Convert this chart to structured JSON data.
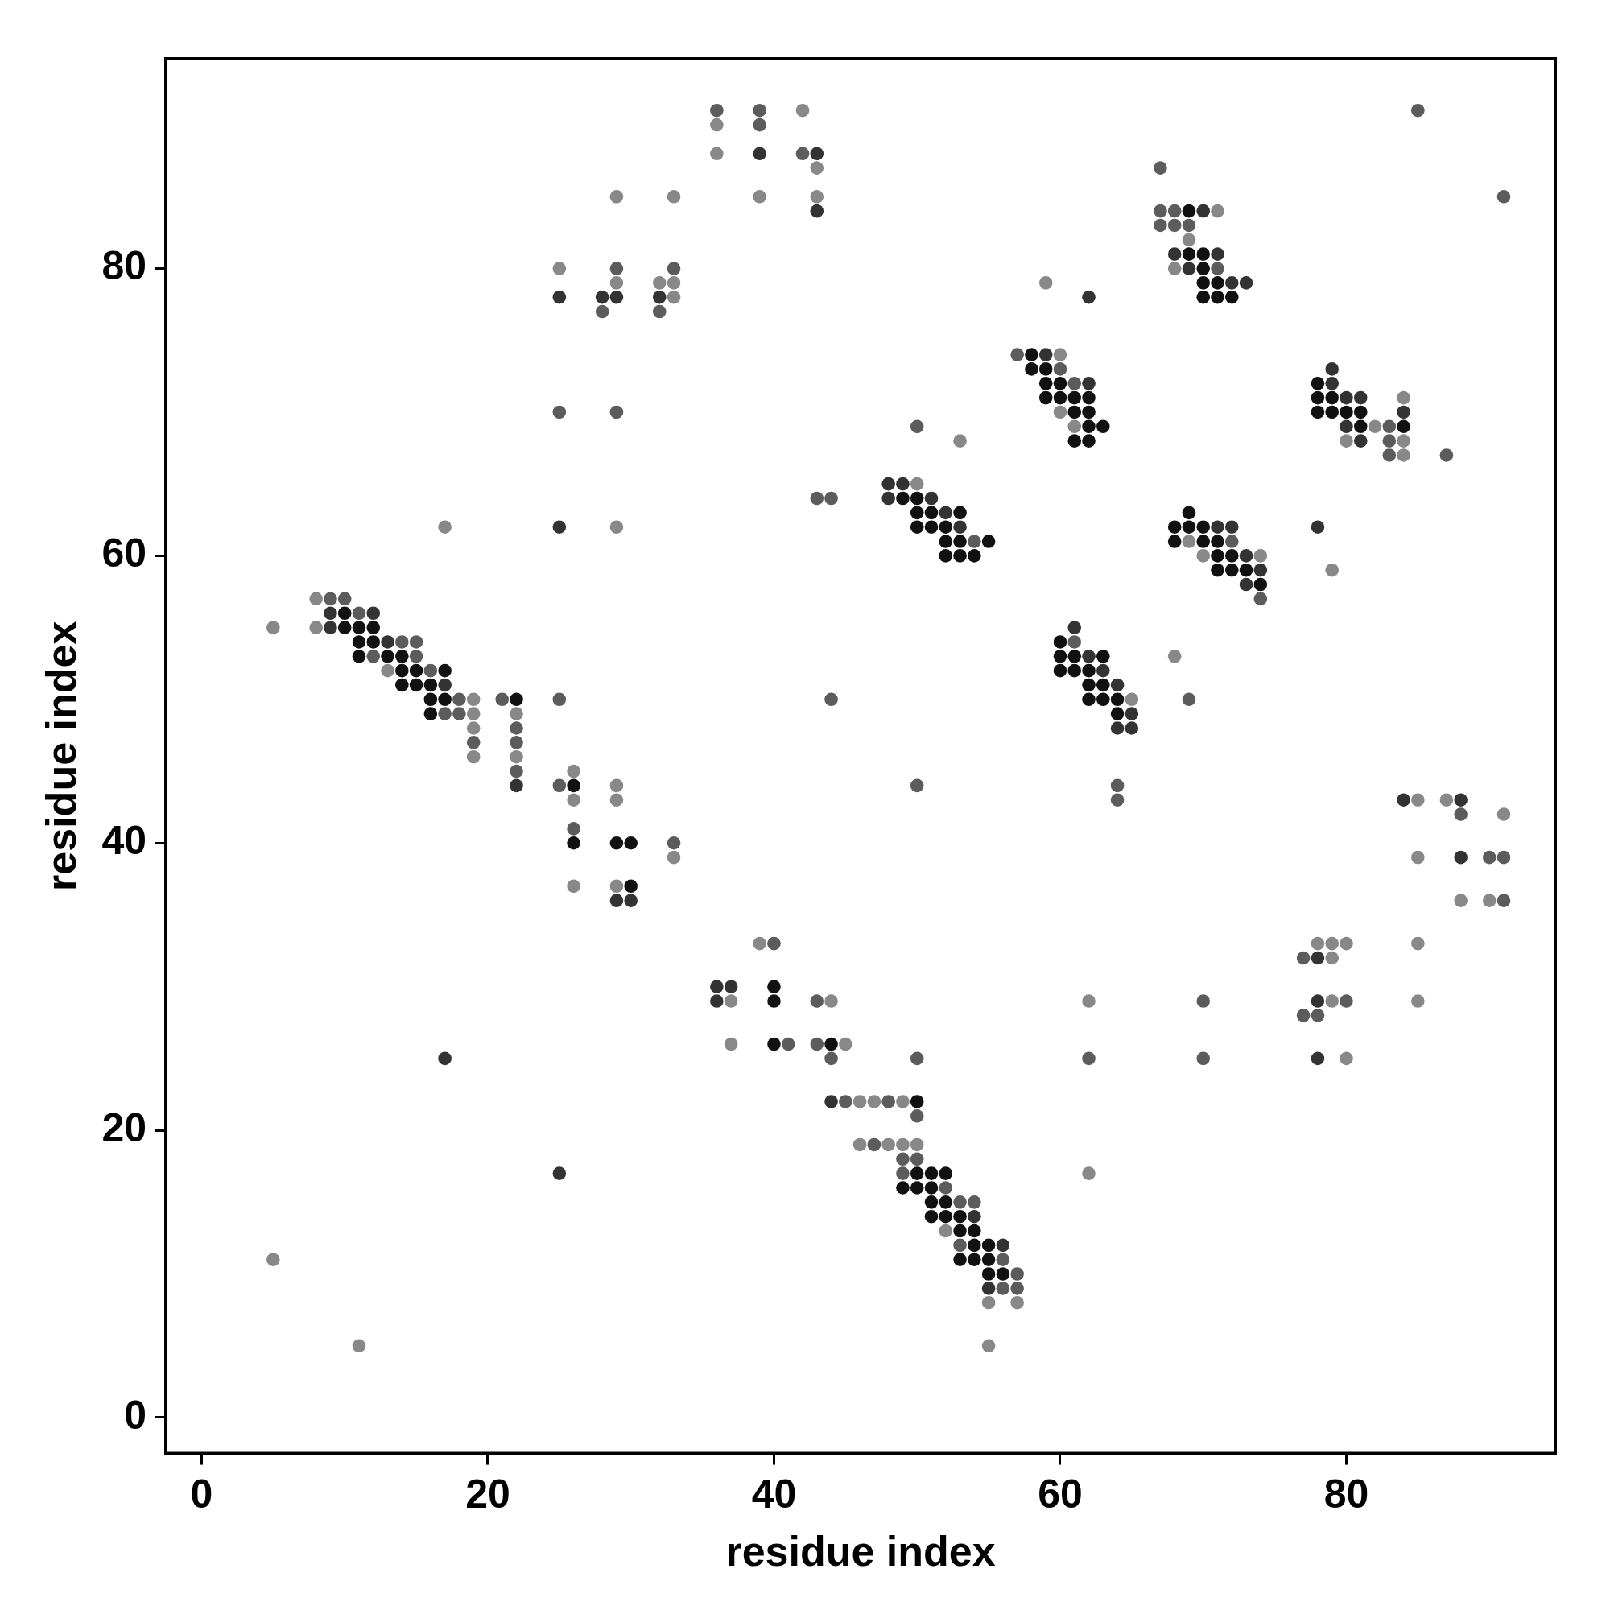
{
  "chart_data": {
    "type": "scatter",
    "xlabel": "residue index",
    "ylabel": "residue index",
    "xlim": [
      -2.5,
      94.6
    ],
    "ylim": [
      -2.5,
      94.6
    ],
    "xticks": [
      0,
      20,
      40,
      60,
      80
    ],
    "yticks": [
      0,
      20,
      40,
      60,
      80
    ],
    "grid": false,
    "legend": false,
    "marker": "circle",
    "series": [
      {
        "color": "#888888",
        "x": [
          36,
          36,
          39,
          42,
          43,
          43,
          29,
          33,
          25,
          29,
          32,
          33,
          33,
          17,
          29,
          71,
          69,
          68,
          59,
          60,
          61,
          53,
          50,
          82,
          80,
          84,
          84,
          84,
          79,
          69,
          70,
          74,
          68,
          65,
          5,
          8,
          8,
          13,
          19,
          19,
          19,
          22,
          19,
          22,
          26,
          29,
          26,
          29,
          26,
          29,
          33,
          5,
          11,
          39,
          37,
          44,
          62,
          37,
          45,
          46,
          47,
          49,
          46,
          48,
          49,
          50,
          62,
          52,
          55,
          57,
          55,
          85,
          87,
          91,
          85,
          88,
          90,
          78,
          79,
          80,
          85,
          79,
          79,
          85,
          80,
          60
        ],
        "values": [
          90,
          88,
          85,
          91,
          87,
          85,
          85,
          85,
          80,
          79,
          79,
          79,
          78,
          62,
          62,
          84,
          82,
          80,
          79,
          70,
          69,
          68,
          65,
          69,
          68,
          71,
          68,
          67,
          59,
          61,
          60,
          60,
          53,
          50,
          55,
          57,
          55,
          52,
          50,
          49,
          48,
          49,
          46,
          46,
          45,
          44,
          43,
          43,
          37,
          37,
          39,
          11,
          5,
          33,
          29,
          29,
          29,
          26,
          26,
          22,
          22,
          22,
          19,
          19,
          19,
          19,
          17,
          13,
          8,
          8,
          5,
          43,
          43,
          42,
          39,
          36,
          36,
          33,
          33,
          33,
          33,
          32,
          29,
          29,
          25,
          74
        ]
      },
      {
        "color": "#5c5c5c",
        "x": [
          36,
          39,
          39,
          42,
          29,
          28,
          32,
          33,
          25,
          29,
          85,
          91,
          67,
          67,
          68,
          67,
          68,
          69,
          71,
          57,
          60,
          61,
          50,
          43,
          44,
          54,
          83,
          83,
          83,
          87,
          72,
          74,
          61,
          69,
          44,
          10,
          9,
          11,
          14,
          15,
          12,
          15,
          16,
          18,
          21,
          25,
          17,
          18,
          22,
          19,
          22,
          22,
          25,
          26,
          33,
          50,
          40,
          43,
          41,
          43,
          44,
          50,
          62,
          45,
          48,
          50,
          47,
          49,
          50,
          49,
          52,
          53,
          54,
          53,
          56,
          57,
          56,
          57,
          64,
          64,
          88,
          90,
          91,
          91,
          77,
          70,
          80,
          77,
          78,
          70
        ],
        "values": [
          91,
          91,
          90,
          88,
          80,
          77,
          77,
          80,
          70,
          70,
          91,
          85,
          87,
          84,
          84,
          83,
          83,
          83,
          80,
          74,
          73,
          72,
          69,
          64,
          64,
          61,
          69,
          68,
          67,
          67,
          61,
          57,
          54,
          50,
          50,
          57,
          57,
          56,
          54,
          54,
          53,
          53,
          52,
          50,
          50,
          50,
          49,
          49,
          47,
          47,
          48,
          45,
          44,
          41,
          40,
          44,
          33,
          29,
          26,
          26,
          25,
          25,
          25,
          22,
          22,
          21,
          19,
          18,
          18,
          17,
          16,
          15,
          15,
          12,
          11,
          10,
          9,
          9,
          44,
          43,
          42,
          39,
          39,
          36,
          32,
          29,
          29,
          28,
          28,
          25
        ]
      },
      {
        "color": "#333333",
        "x": [
          39,
          43,
          43,
          25,
          28,
          29,
          32,
          25,
          62,
          70,
          68,
          71,
          69,
          72,
          73,
          59,
          62,
          48,
          49,
          48,
          51,
          52,
          53,
          79,
          79,
          80,
          81,
          81,
          84,
          80,
          78,
          71,
          72,
          73,
          74,
          73,
          61,
          62,
          63,
          64,
          65,
          64,
          65,
          9,
          12,
          9,
          13,
          17,
          22,
          29,
          30,
          17,
          25,
          36,
          37,
          36,
          44,
          54,
          56,
          55,
          84,
          88,
          88,
          78,
          78,
          78
        ],
        "values": [
          88,
          88,
          84,
          78,
          78,
          78,
          78,
          62,
          78,
          84,
          81,
          81,
          80,
          79,
          79,
          74,
          72,
          65,
          65,
          64,
          64,
          63,
          62,
          73,
          72,
          71,
          71,
          68,
          70,
          69,
          62,
          62,
          62,
          60,
          59,
          58,
          55,
          53,
          52,
          51,
          49,
          48,
          48,
          56,
          56,
          55,
          54,
          51,
          44,
          36,
          36,
          25,
          17,
          30,
          30,
          29,
          22,
          14,
          12,
          9,
          43,
          43,
          39,
          32,
          29,
          25
        ]
      },
      {
        "color": "#111111",
        "x": [
          69,
          69,
          70,
          70,
          70,
          71,
          70,
          71,
          72,
          58,
          58,
          59,
          59,
          60,
          59,
          60,
          61,
          62,
          61,
          62,
          62,
          63,
          61,
          62,
          49,
          50,
          50,
          51,
          53,
          50,
          51,
          52,
          52,
          53,
          55,
          52,
          53,
          54,
          78,
          78,
          79,
          78,
          79,
          80,
          81,
          81,
          84,
          68,
          68,
          69,
          69,
          70,
          70,
          71,
          71,
          71,
          72,
          72,
          73,
          74,
          60,
          60,
          61,
          63,
          60,
          61,
          62,
          62,
          63,
          62,
          63,
          64,
          64,
          10,
          10,
          11,
          12,
          11,
          12,
          11,
          13,
          14,
          14,
          15,
          17,
          14,
          15,
          16,
          16,
          17,
          22,
          16,
          26,
          26,
          29,
          30,
          30,
          40,
          40,
          40,
          44,
          50,
          50,
          51,
          52,
          49,
          50,
          51,
          51,
          52,
          51,
          52,
          53,
          53,
          54,
          54,
          55,
          53,
          54,
          55,
          55,
          56
        ],
        "values": [
          84,
          81,
          81,
          80,
          79,
          79,
          78,
          78,
          78,
          74,
          73,
          73,
          72,
          72,
          71,
          71,
          71,
          71,
          70,
          70,
          69,
          69,
          68,
          68,
          64,
          64,
          63,
          63,
          63,
          62,
          62,
          62,
          61,
          61,
          61,
          60,
          60,
          60,
          72,
          71,
          71,
          70,
          70,
          70,
          70,
          69,
          69,
          62,
          61,
          63,
          62,
          62,
          61,
          61,
          60,
          59,
          60,
          59,
          59,
          58,
          54,
          53,
          53,
          53,
          52,
          52,
          52,
          51,
          51,
          50,
          50,
          50,
          49,
          56,
          55,
          55,
          55,
          54,
          54,
          53,
          53,
          53,
          52,
          52,
          52,
          51,
          51,
          51,
          50,
          50,
          50,
          49,
          44,
          40,
          40,
          40,
          37,
          30,
          29,
          26,
          26,
          22,
          17,
          17,
          17,
          16,
          16,
          16,
          15,
          15,
          14,
          14,
          14,
          13,
          13,
          12,
          12,
          11,
          11,
          11,
          10,
          10
        ]
      }
    ]
  }
}
